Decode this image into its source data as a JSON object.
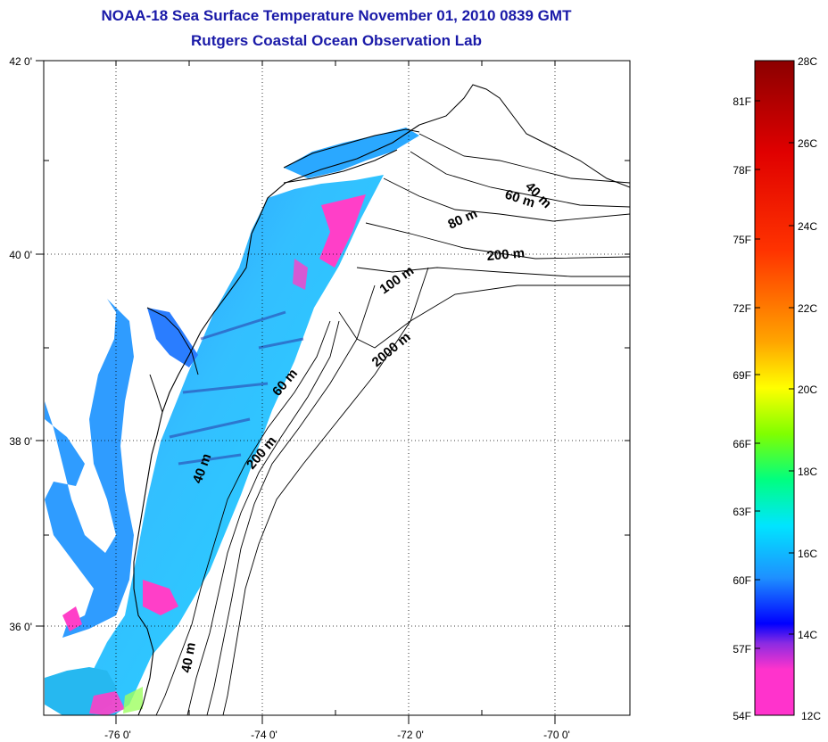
{
  "header": {
    "title_line1": "NOAA-18 Sea Surface Temperature November 01, 2010 0839 GMT",
    "title_line2": "Rutgers Coastal Ocean Observation Lab"
  },
  "map": {
    "lat_labels": [
      "42 0'",
      "40 0'",
      "38 0'",
      "36 0'"
    ],
    "lon_labels": [
      "-76 0'",
      "-74 0'",
      "-72 0'",
      "-70 0'"
    ],
    "isobath_labels": [
      "40 m",
      "60 m",
      "80 m",
      "200 m",
      "100 m",
      "2000 m",
      "60 m",
      "200 m",
      "40 m",
      "40 m"
    ]
  },
  "colorbar": {
    "fahrenheit_labels": [
      "81F",
      "78F",
      "75F",
      "72F",
      "69F",
      "66F",
      "63F",
      "60F",
      "57F",
      "54F"
    ],
    "celsius_labels": [
      "28C",
      "26C",
      "24C",
      "22C",
      "20C",
      "18C",
      "16C",
      "14C",
      "12C"
    ],
    "colors": [
      "#ff33cc",
      "#8a2be2",
      "#0000ff",
      "#1e90ff",
      "#00e5ff",
      "#00ff80",
      "#80ff00",
      "#ffff00",
      "#ffa500",
      "#ff3300",
      "#8b0000"
    ]
  }
}
